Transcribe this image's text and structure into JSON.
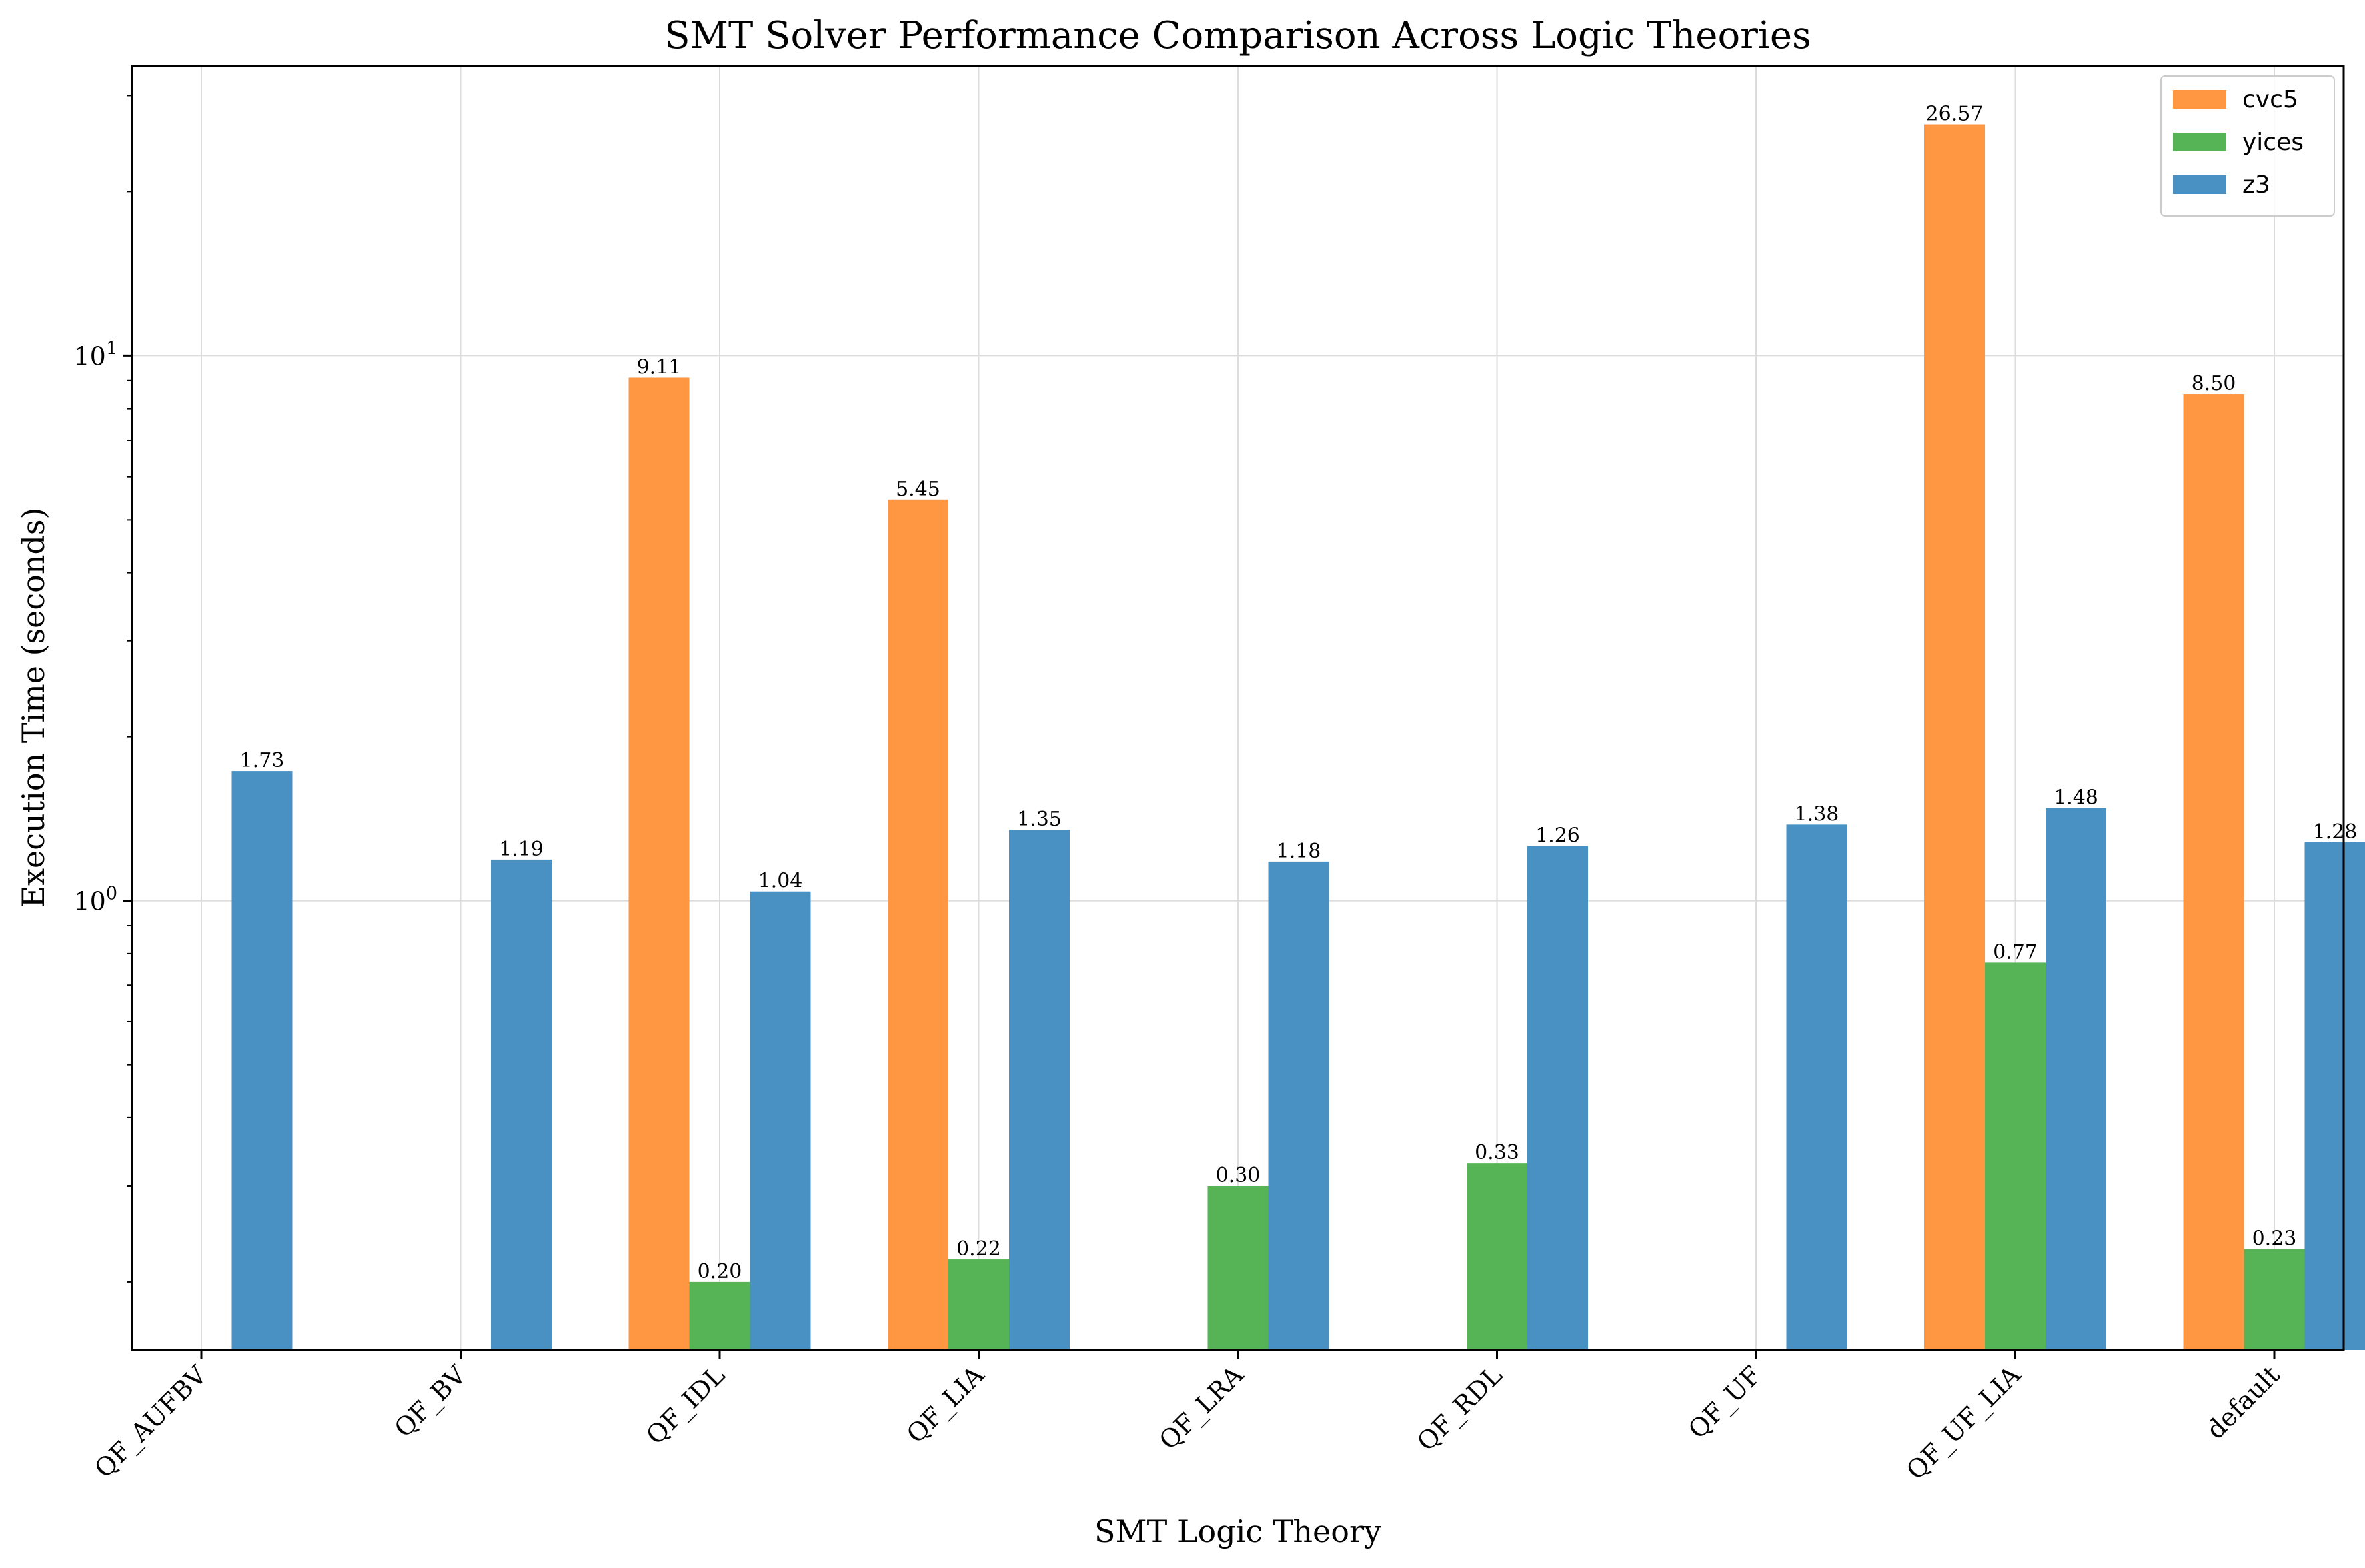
{
  "chart_data": {
    "type": "bar",
    "title": "SMT Solver Performance Comparison Across Logic Theories",
    "xlabel": "SMT Logic Theory",
    "ylabel": "Execution Time (seconds)",
    "yscale": "log",
    "ylim": [
      0.15,
      34
    ],
    "yticks": [
      {
        "value": 1,
        "base": "10",
        "exp": "0"
      },
      {
        "value": 10,
        "base": "10",
        "exp": "1"
      }
    ],
    "grid": true,
    "legend_position": "top-right",
    "categories": [
      "QF_AUFBV",
      "QF_BV",
      "QF_IDL",
      "QF_LIA",
      "QF_LRA",
      "QF_RDL",
      "QF_UF",
      "QF_UF_LIA",
      "default"
    ],
    "series": [
      {
        "name": "cvc5",
        "color": "#ff9641",
        "values": [
          null,
          null,
          9.11,
          5.45,
          null,
          null,
          null,
          26.57,
          8.5
        ],
        "labels": [
          null,
          null,
          "9.11",
          "5.45",
          null,
          null,
          null,
          "26.57",
          "8.50"
        ]
      },
      {
        "name": "yices",
        "color": "#56b356",
        "values": [
          null,
          null,
          0.2,
          0.22,
          0.3,
          0.33,
          null,
          0.77,
          0.23
        ],
        "labels": [
          null,
          null,
          "0.20",
          "0.22",
          "0.30",
          "0.33",
          null,
          "0.77",
          "0.23"
        ]
      },
      {
        "name": "z3",
        "color": "#4a91c3",
        "values": [
          1.73,
          1.19,
          1.04,
          1.35,
          1.18,
          1.26,
          1.38,
          1.48,
          1.28
        ],
        "labels": [
          "1.73",
          "1.19",
          "1.04",
          "1.35",
          "1.18",
          "1.26",
          "1.38",
          "1.48",
          "1.28"
        ]
      }
    ]
  }
}
